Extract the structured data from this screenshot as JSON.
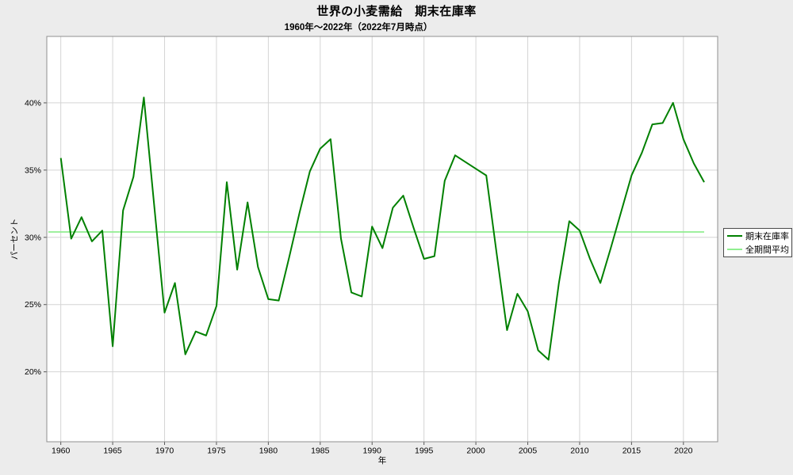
{
  "figure": {
    "title": "世界の小麦需給　期末在庫率",
    "subtitle": "1960年～2022年（2022年7月時点）",
    "xlabel": "年",
    "ylabel": "パーセント"
  },
  "legend": {
    "items": [
      {
        "label": "期末在庫率",
        "color": "#008000"
      },
      {
        "label": "全期間平均",
        "color": "#90ee90"
      }
    ]
  },
  "colors": {
    "figure_background": "#ececec",
    "plot_background": "#ffffff",
    "grid": "#d4d4d4",
    "frame": "#8f8f8f",
    "tick": "#555555",
    "stock_ratio_line": "#008000",
    "average_line": "#90ee90",
    "text": "#000000"
  },
  "chart_data": {
    "type": "line",
    "title": "世界の小麦需給　期末在庫率",
    "subtitle": "1960年～2022年（2022年7月時点）",
    "xlabel": "年",
    "ylabel": "パーセント",
    "grid": true,
    "legend_position": "right-outside",
    "xlim": [
      1958.65,
      2023.3
    ],
    "ylim": [
      14.8,
      44.94
    ],
    "x_ticks": [
      1960,
      1965,
      1970,
      1975,
      1980,
      1985,
      1990,
      1995,
      2000,
      2005,
      2010,
      2015,
      2020
    ],
    "x_tick_labels": [
      "1960",
      "1965",
      "1970",
      "1975",
      "1980",
      "1985",
      "1990",
      "1995",
      "2000",
      "2005",
      "2010",
      "2015",
      "2020"
    ],
    "y_ticks": [
      20,
      25,
      30,
      35,
      40
    ],
    "y_tick_labels": [
      "20%",
      "25%",
      "30%",
      "35%",
      "40%"
    ],
    "x": [
      1960,
      1961,
      1962,
      1963,
      1964,
      1965,
      1966,
      1967,
      1968,
      1969,
      1970,
      1971,
      1972,
      1973,
      1974,
      1975,
      1976,
      1977,
      1978,
      1979,
      1980,
      1981,
      1982,
      1983,
      1984,
      1985,
      1986,
      1987,
      1988,
      1989,
      1990,
      1991,
      1992,
      1993,
      1994,
      1995,
      1996,
      1997,
      1998,
      1999,
      2000,
      2001,
      2002,
      2003,
      2004,
      2005,
      2006,
      2007,
      2008,
      2009,
      2010,
      2011,
      2012,
      2013,
      2014,
      2015,
      2016,
      2017,
      2018,
      2019,
      2020,
      2021,
      2022
    ],
    "series": [
      {
        "name": "期末在庫率",
        "color": "#008000",
        "values": [
          35.9,
          29.9,
          31.5,
          29.7,
          30.5,
          21.9,
          32.0,
          34.5,
          40.4,
          32.4,
          24.4,
          26.6,
          21.3,
          23.0,
          22.7,
          24.9,
          34.1,
          27.6,
          32.6,
          27.8,
          25.4,
          25.3,
          28.5,
          31.8,
          34.9,
          36.6,
          37.3,
          29.9,
          25.9,
          25.6,
          30.8,
          29.2,
          32.2,
          33.1,
          30.7,
          28.4,
          28.6,
          34.2,
          36.1,
          35.6,
          35.1,
          34.6,
          28.8,
          23.1,
          25.8,
          24.5,
          21.6,
          20.9,
          26.6,
          31.2,
          30.5,
          28.4,
          26.6,
          29.2,
          31.9,
          34.6,
          36.3,
          38.4,
          38.5,
          40.0,
          37.3,
          35.5,
          34.1
        ]
      },
      {
        "name": "全期間平均",
        "color": "#90ee90",
        "type": "constant",
        "value": 30.4,
        "x_start": 1958.8,
        "x_end": 2022
      }
    ]
  }
}
